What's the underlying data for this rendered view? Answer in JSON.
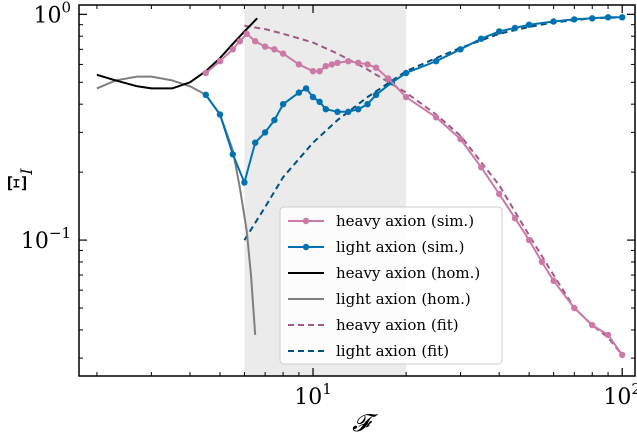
{
  "chart_data": {
    "type": "line",
    "xlabel": "𝓕",
    "ylabel": "Ξ",
    "ylabel_sub": "I",
    "xscale": "log",
    "yscale": "log",
    "xlim": [
      1.75,
      110
    ],
    "ylim": [
      0.025,
      1.1
    ],
    "x_ticks": [
      {
        "value": 10,
        "base": "10",
        "exp": "1"
      },
      {
        "value": 100,
        "base": "10",
        "exp": "2"
      }
    ],
    "y_ticks": [
      {
        "value": 0.1,
        "base": "10",
        "exp": "−1"
      },
      {
        "value": 1,
        "base": "10",
        "exp": "0"
      }
    ],
    "shaded_region": {
      "x": [
        6,
        20
      ],
      "color": "#ebebeb"
    },
    "grid": false,
    "legend_position": "lower-center",
    "series": [
      {
        "name": "heavy axion (sim.)",
        "color": "#cc79a7",
        "style": "solid-marker",
        "points": [
          [
            4.5,
            0.55
          ],
          [
            5,
            0.62
          ],
          [
            5.5,
            0.7
          ],
          [
            5.8,
            0.76
          ],
          [
            6.1,
            0.82
          ],
          [
            6.5,
            0.76
          ],
          [
            7,
            0.72
          ],
          [
            7.5,
            0.7
          ],
          [
            8,
            0.67
          ],
          [
            9,
            0.6
          ],
          [
            10,
            0.56
          ],
          [
            10.5,
            0.56
          ],
          [
            11,
            0.59
          ],
          [
            11.5,
            0.6
          ],
          [
            12,
            0.61
          ],
          [
            13,
            0.62
          ],
          [
            14,
            0.61
          ],
          [
            15,
            0.6
          ],
          [
            16,
            0.58
          ],
          [
            17.5,
            0.52
          ],
          [
            20,
            0.43
          ],
          [
            25,
            0.35
          ],
          [
            30,
            0.28
          ],
          [
            35,
            0.21
          ],
          [
            40,
            0.16
          ],
          [
            45,
            0.125
          ],
          [
            50,
            0.1
          ],
          [
            55,
            0.08
          ],
          [
            60,
            0.066
          ],
          [
            70,
            0.05
          ],
          [
            80,
            0.042
          ],
          [
            90,
            0.038
          ],
          [
            100,
            0.031
          ]
        ]
      },
      {
        "name": "light axion (sim.)",
        "color": "#0072b2",
        "style": "solid-marker",
        "points": [
          [
            4.5,
            0.44
          ],
          [
            5,
            0.36
          ],
          [
            5.5,
            0.24
          ],
          [
            6,
            0.18
          ],
          [
            6.5,
            0.27
          ],
          [
            7,
            0.3
          ],
          [
            7.5,
            0.34
          ],
          [
            8,
            0.4
          ],
          [
            9,
            0.45
          ],
          [
            9.5,
            0.47
          ],
          [
            10,
            0.43
          ],
          [
            10.5,
            0.41
          ],
          [
            11,
            0.38
          ],
          [
            12,
            0.37
          ],
          [
            13,
            0.37
          ],
          [
            14,
            0.38
          ],
          [
            15,
            0.4
          ],
          [
            16,
            0.44
          ],
          [
            18,
            0.5
          ],
          [
            20,
            0.55
          ],
          [
            25,
            0.62
          ],
          [
            30,
            0.7
          ],
          [
            35,
            0.78
          ],
          [
            40,
            0.84
          ],
          [
            45,
            0.87
          ],
          [
            50,
            0.9
          ],
          [
            60,
            0.93
          ],
          [
            70,
            0.95
          ],
          [
            80,
            0.96
          ],
          [
            90,
            0.97
          ],
          [
            100,
            0.97
          ]
        ]
      },
      {
        "name": "heavy axion (hom.)",
        "color": "#000000",
        "style": "solid",
        "points": [
          [
            2,
            0.54
          ],
          [
            2.3,
            0.51
          ],
          [
            2.7,
            0.48
          ],
          [
            3,
            0.47
          ],
          [
            3.5,
            0.47
          ],
          [
            4,
            0.5
          ],
          [
            4.5,
            0.56
          ],
          [
            5,
            0.64
          ],
          [
            5.5,
            0.74
          ],
          [
            6,
            0.84
          ],
          [
            6.3,
            0.9
          ],
          [
            6.6,
            0.96
          ]
        ]
      },
      {
        "name": "light axion (hom.)",
        "color": "#7f7f7f",
        "style": "solid",
        "points": [
          [
            2,
            0.47
          ],
          [
            2.3,
            0.51
          ],
          [
            2.7,
            0.53
          ],
          [
            3,
            0.53
          ],
          [
            3.5,
            0.51
          ],
          [
            4,
            0.48
          ],
          [
            4.5,
            0.44
          ],
          [
            5,
            0.36
          ],
          [
            5.5,
            0.25
          ],
          [
            5.8,
            0.17
          ],
          [
            6.1,
            0.11
          ],
          [
            6.3,
            0.07
          ],
          [
            6.5,
            0.038
          ]
        ]
      },
      {
        "name": "heavy axion (fit)",
        "color": "#a05a88",
        "style": "dashed",
        "points": [
          [
            6,
            0.89
          ],
          [
            7,
            0.86
          ],
          [
            8,
            0.82
          ],
          [
            10,
            0.75
          ],
          [
            12,
            0.67
          ],
          [
            15,
            0.57
          ],
          [
            20,
            0.45
          ],
          [
            25,
            0.36
          ],
          [
            30,
            0.29
          ],
          [
            40,
            0.175
          ],
          [
            50,
            0.105
          ],
          [
            60,
            0.07
          ],
          [
            70,
            0.05
          ],
          [
            80,
            0.042
          ],
          [
            90,
            0.037
          ],
          [
            100,
            0.031
          ]
        ]
      },
      {
        "name": "light axion (fit)",
        "color": "#005080",
        "style": "dashed",
        "points": [
          [
            6,
            0.1
          ],
          [
            7,
            0.14
          ],
          [
            8,
            0.19
          ],
          [
            10,
            0.27
          ],
          [
            12,
            0.34
          ],
          [
            15,
            0.43
          ],
          [
            20,
            0.56
          ],
          [
            25,
            0.64
          ],
          [
            30,
            0.71
          ],
          [
            40,
            0.82
          ],
          [
            50,
            0.88
          ],
          [
            60,
            0.92
          ],
          [
            80,
            0.96
          ],
          [
            100,
            0.97
          ]
        ]
      }
    ]
  }
}
